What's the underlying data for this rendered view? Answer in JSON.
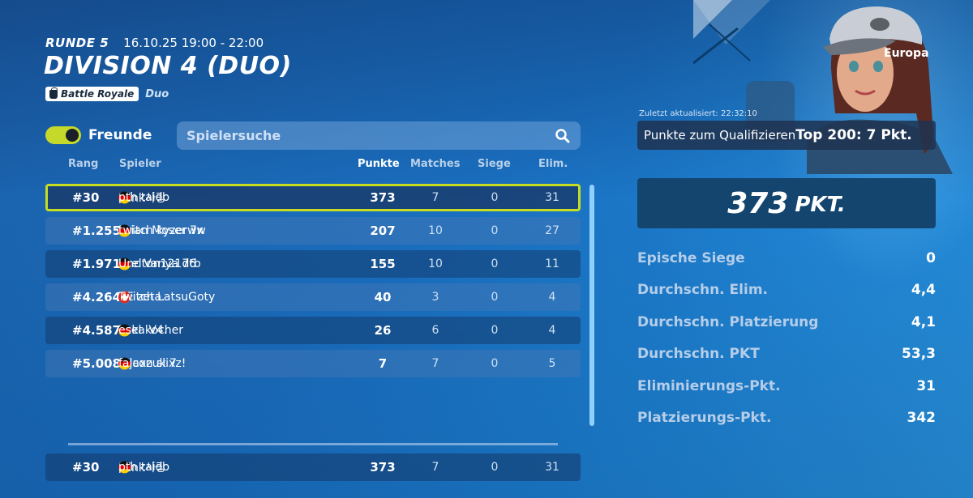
{
  "header": {
    "round_label": "RUNDE 5",
    "round_time": "16.10.25 19:00 - 22:00",
    "title": "DIVISION 4 (DUO)",
    "mode_badge": "Battle Royale",
    "mode_sub": "Duo"
  },
  "controls": {
    "friends_label": "Freunde",
    "friends_toggle_on": true,
    "search_placeholder": "Spielersuche"
  },
  "table": {
    "columns": {
      "rank": "Rang",
      "player": "Spieler",
      "points": "Punkte",
      "matches": "Matches",
      "wins": "Siege",
      "elims": "Elim."
    },
    "rows": [
      {
        "rank": "#30",
        "p1": "Mink사랑",
        "p2_flag": "de",
        "p2": "pth taido",
        "points": "373",
        "matches": "7",
        "wins": "0",
        "elims": "31",
        "self": true
      },
      {
        "rank": "#1.255",
        "p1_flag": "de",
        "p1": "Brian Moser 7x",
        "p2_flag": "de",
        "p2": "twitch kyzerww",
        "points": "207",
        "matches": "10",
        "wins": "0",
        "elims": "27"
      },
      {
        "rank": "#1.971",
        "p1_flag": "de",
        "p1": "shelton12176",
        "p2_flag": "de",
        "p2": "Unc Vanya dtb",
        "points": "155",
        "matches": "10",
        "wins": "0",
        "elims": "11"
      },
      {
        "rank": "#4.264",
        "p1_flag": "jp",
        "p1": "RE zeta.",
        "p2_flag": "ch",
        "p2": "Twitch LatsuGoty",
        "points": "40",
        "matches": "3",
        "wins": "0",
        "elims": "4"
      },
      {
        "rank": "#4.587",
        "p1_flag": "de",
        "p1": "Luka V4.",
        "p2_flag": "de",
        "p2": "esel kocher",
        "points": "26",
        "matches": "6",
        "wins": "0",
        "elims": "4"
      },
      {
        "rank": "#5.008",
        "p1_flag": "gb",
        "p1": "fojaxzuk 7",
        "p2_flag": "de",
        "p2": "falcon slixz!",
        "points": "7",
        "matches": "7",
        "wins": "0",
        "elims": "5"
      }
    ],
    "footer": {
      "rank": "#30",
      "p1": "Mink사랑",
      "p2_flag": "de",
      "p2": "pth taido",
      "points": "373",
      "matches": "7",
      "wins": "0",
      "elims": "31"
    }
  },
  "panel": {
    "region": "Europa",
    "updated": "Zuletzt aktualisiert: 22:32:10",
    "qualify_label": "Punkte zum Qualifizieren",
    "qualify_value": "Top 200: 7 Pkt.",
    "points_value": "373",
    "points_unit": "PKT.",
    "stats": [
      {
        "label": "Epische Siege",
        "value": "0"
      },
      {
        "label": "Durchschn. Elim.",
        "value": "4,4"
      },
      {
        "label": "Durchschn. Platzierung",
        "value": "4,1"
      },
      {
        "label": "Durchschn. PKT",
        "value": "53,3"
      },
      {
        "label": "Eliminierungs-Pkt.",
        "value": "31"
      },
      {
        "label": "Platzierungs-Pkt.",
        "value": "342"
      }
    ]
  },
  "colors": {
    "accent_toggle": "#c5d92a",
    "self_row_border": "#c8dd21",
    "scrollbar": "#8fd0ff"
  }
}
